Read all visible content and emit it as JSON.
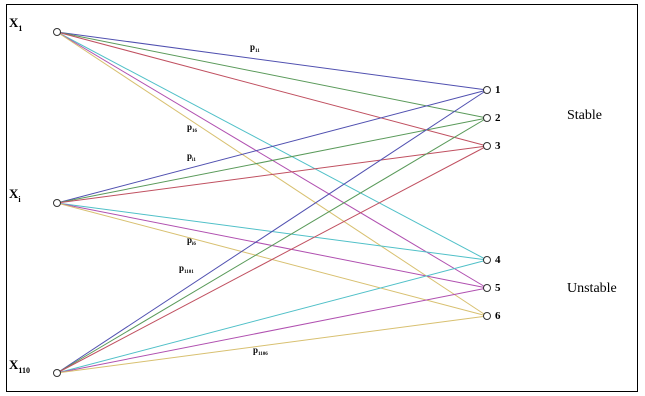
{
  "inputs": [
    {
      "main": "X",
      "sub": "1"
    },
    {
      "main": "X",
      "sub": "i"
    },
    {
      "main": "X",
      "sub": "110"
    }
  ],
  "outputs": [
    "1",
    "2",
    "3",
    "4",
    "5",
    "6"
  ],
  "groups": {
    "stable": "Stable",
    "unstable": "Unstable"
  },
  "edge_colors": [
    "#5050b0",
    "#5a9a5a",
    "#c05060",
    "#50c0c8",
    "#b050b0",
    "#d8c070"
  ],
  "weights": [
    {
      "main": "p",
      "sub": "11"
    },
    {
      "main": "p",
      "sub": "16"
    },
    {
      "main": "p",
      "sub": "i1"
    },
    {
      "main": "p",
      "sub": "i6"
    },
    {
      "main": "p",
      "sub": "1101"
    },
    {
      "main": "p",
      "sub": "1106"
    }
  ]
}
